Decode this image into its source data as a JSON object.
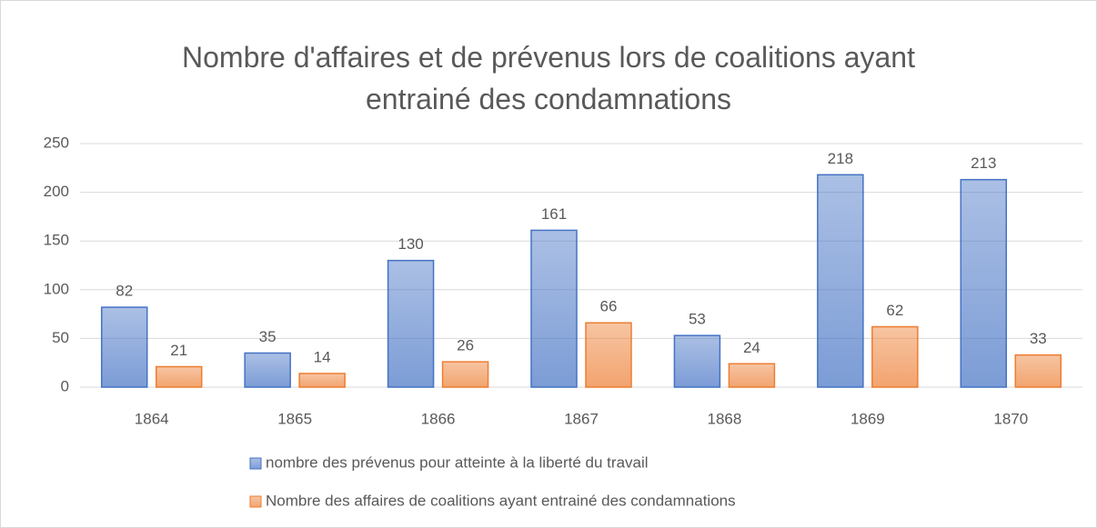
{
  "chart_data": {
    "type": "bar",
    "title": "Nombre d'affaires et de prévenus lors de coalitions ayant entrainé des condamnations",
    "categories": [
      "1864",
      "1865",
      "1866",
      "1867",
      "1868",
      "1869",
      "1870"
    ],
    "series": [
      {
        "name": "nombre des prévenus pour atteinte à la liberté du travail",
        "color": "#4472c4",
        "values": [
          82,
          35,
          130,
          161,
          53,
          218,
          213
        ]
      },
      {
        "name": "Nombre des affaires de coalitions ayant entrainé des condamnations",
        "color": "#ed7d31",
        "values": [
          21,
          14,
          26,
          66,
          24,
          62,
          33
        ]
      }
    ],
    "ylim": [
      0,
      250
    ],
    "yticks": [
      0,
      50,
      100,
      150,
      200,
      250
    ],
    "grid": true,
    "legend": "bottom"
  }
}
